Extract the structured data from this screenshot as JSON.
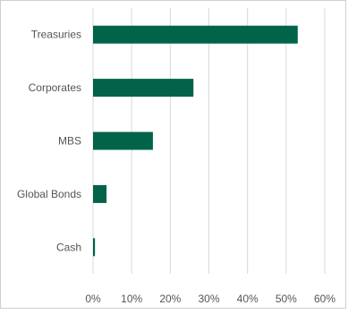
{
  "chart_data": {
    "type": "bar",
    "orientation": "horizontal",
    "categories": [
      "Treasuries",
      "Corporates",
      "MBS",
      "Global Bonds",
      "Cash"
    ],
    "values": [
      53,
      26,
      15.5,
      3.5,
      0.5
    ],
    "value_unit": "%",
    "xlim": [
      0,
      60
    ],
    "xticks": [
      "0%",
      "10%",
      "20%",
      "30%",
      "40%",
      "50%",
      "60%"
    ],
    "grid": "vertical",
    "bar_color": "#00634a",
    "grid_color": "#d9d9d9",
    "title": "",
    "xlabel": "",
    "ylabel": ""
  }
}
